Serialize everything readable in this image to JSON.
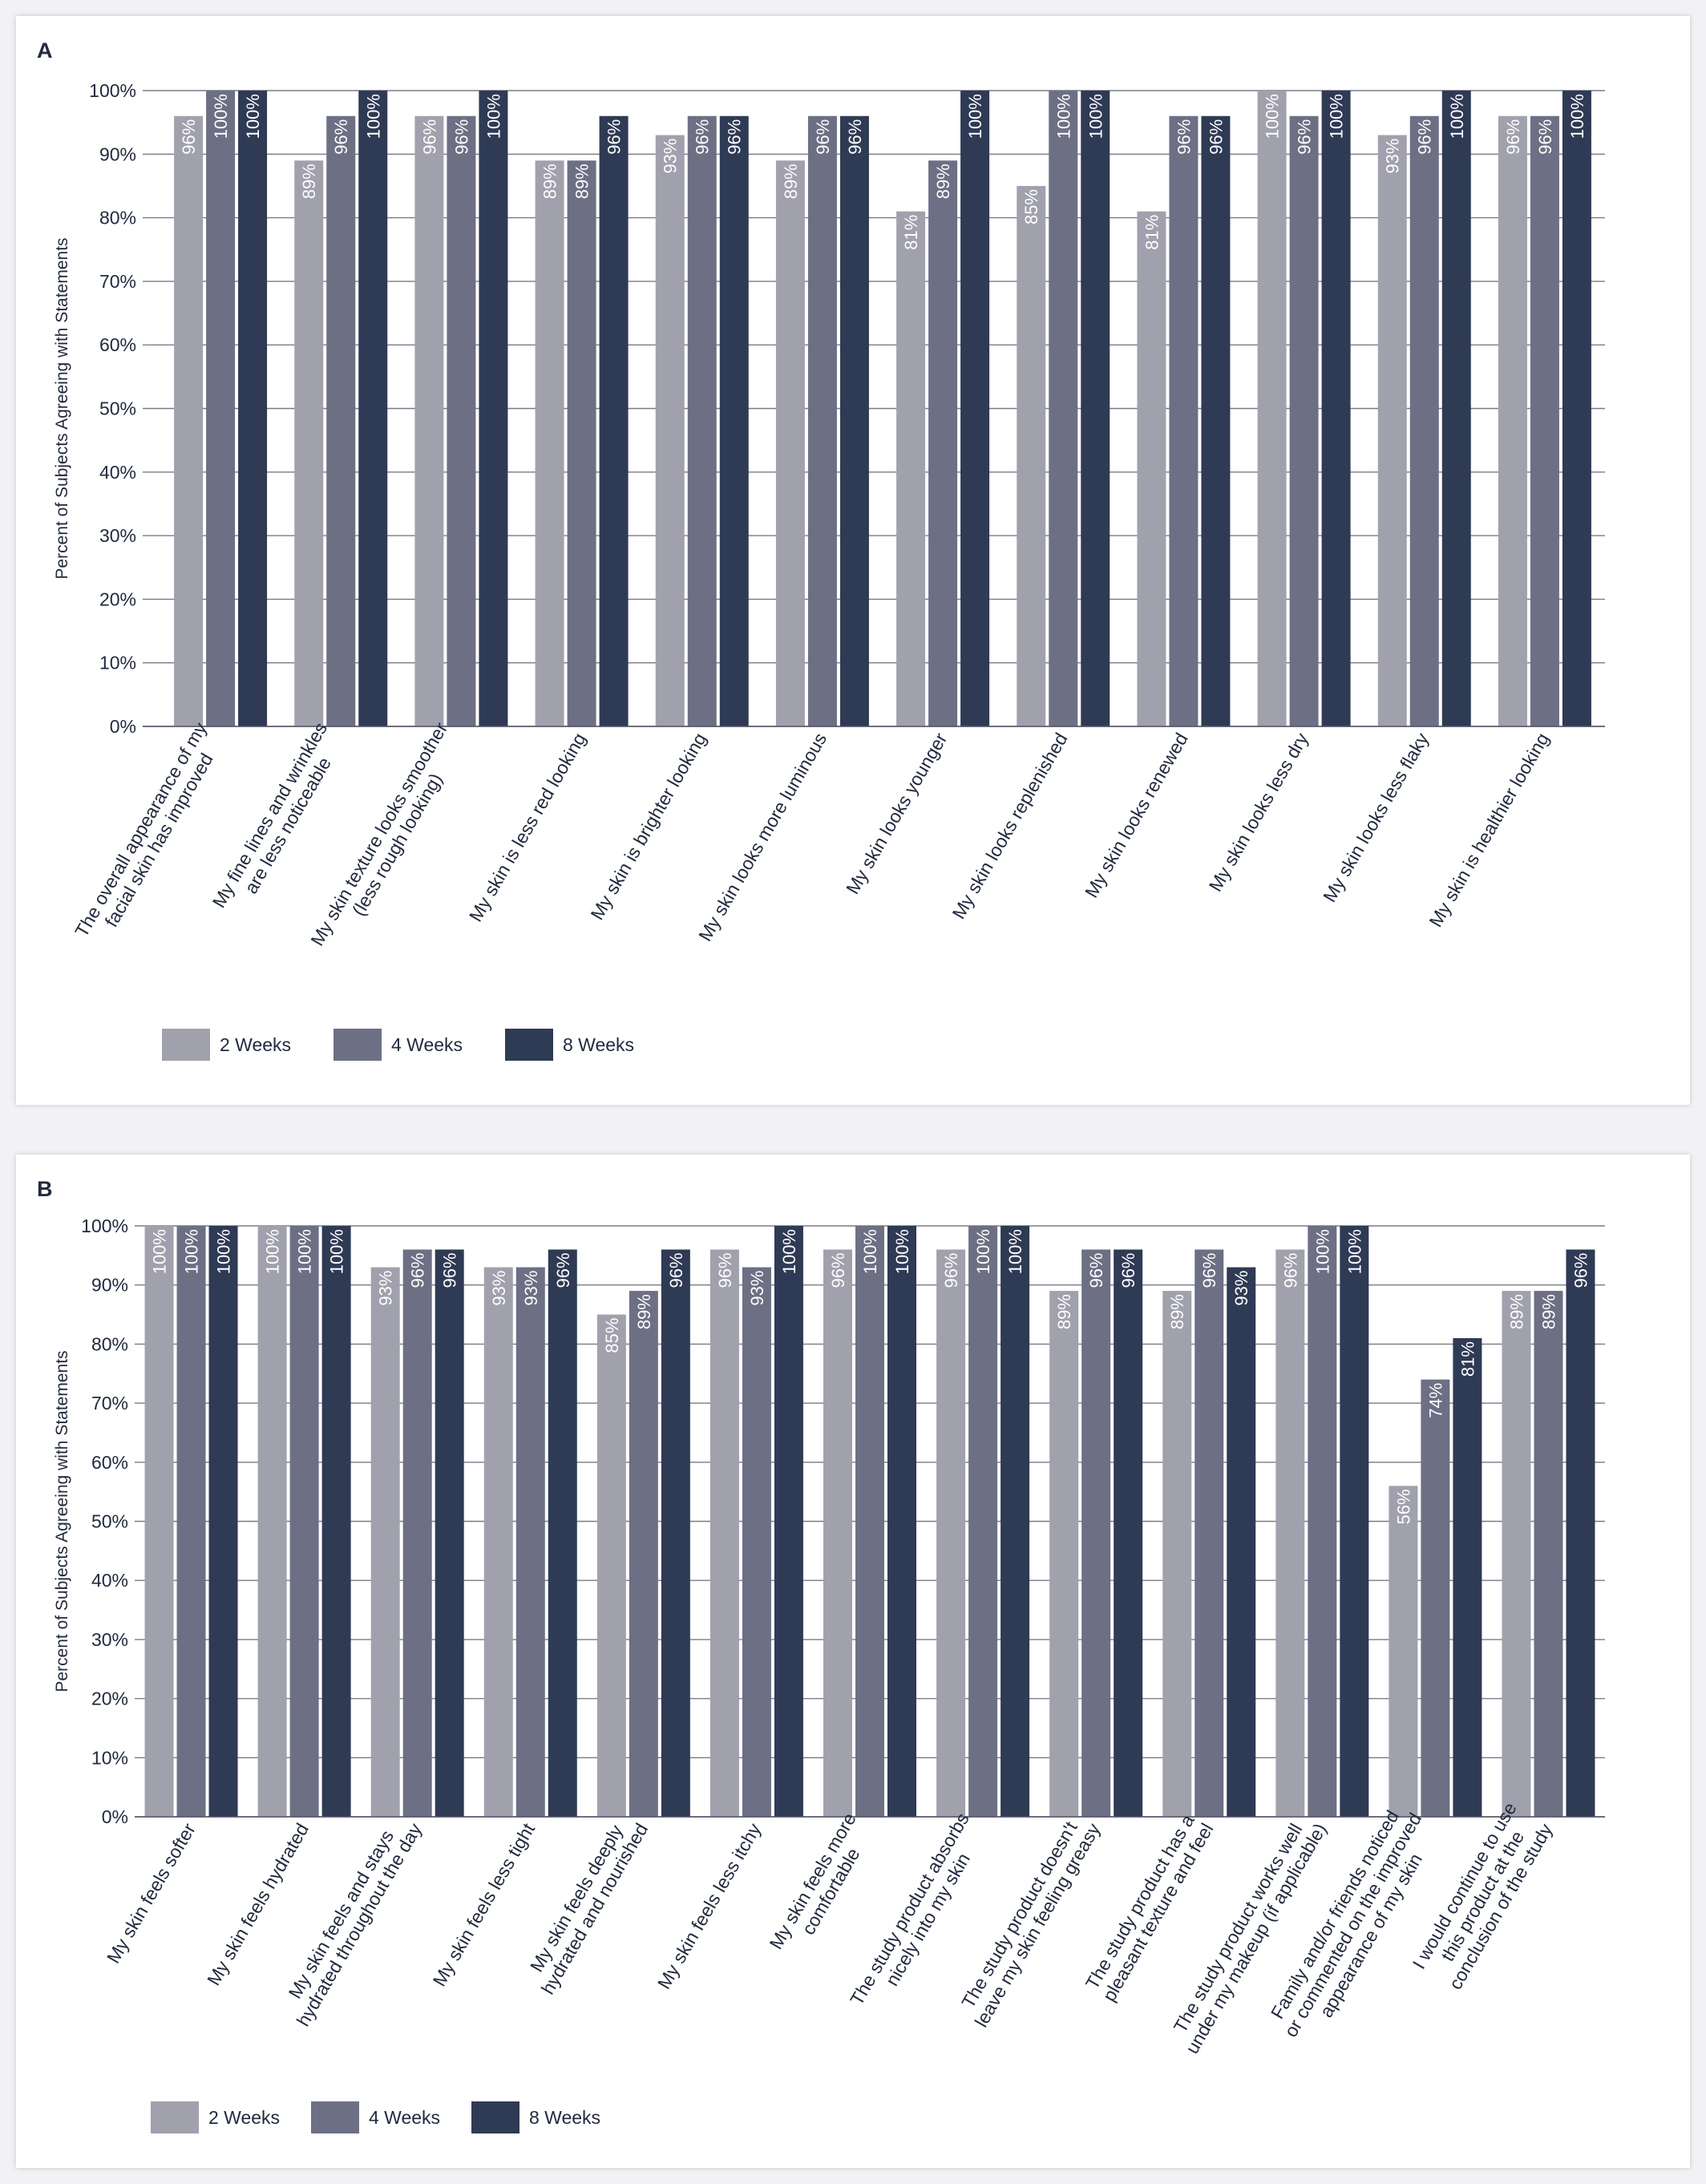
{
  "chart_data": [
    {
      "type": "bar",
      "panel_label": "A",
      "ylabel": "Percent of Subjects Agreeing with Statements",
      "ylim": [
        0,
        100
      ],
      "yticks": [
        "0%",
        "10%",
        "20%",
        "30%",
        "40%",
        "50%",
        "60%",
        "70%",
        "80%",
        "90%",
        "100%"
      ],
      "grid": true,
      "legend_position": "bottom-left",
      "categories": [
        "The overall appearance of my\nfacial skin has improved",
        "My fine lines and wrinkles\nare less noticeable",
        "My skin texture looks smoother\n(less rough looking)",
        "My skin is less red looking",
        "My skin is brighter looking",
        "My skin looks more luminous",
        "My skin looks younger",
        "My skin looks replenished",
        "My skin looks renewed",
        "My skin looks less dry",
        "My skin looks less flaky",
        "My skin is healthier looking"
      ],
      "series": [
        {
          "name": "2 Weeks",
          "color": "#a1a1ae",
          "values": [
            96,
            89,
            96,
            89,
            93,
            89,
            81,
            85,
            81,
            100,
            93,
            96
          ],
          "labels": [
            "96%",
            "89%",
            "96%",
            "89%",
            "93%",
            "89%",
            "81%",
            "85%",
            "81%",
            "100%",
            "93%",
            "96%"
          ]
        },
        {
          "name": "4 Weeks",
          "color": "#6d6f84",
          "values": [
            100,
            96,
            96,
            89,
            96,
            96,
            89,
            100,
            96,
            96,
            96,
            96
          ],
          "labels": [
            "100%",
            "96%",
            "96%",
            "89%",
            "96%",
            "96%",
            "89%",
            "100%",
            "96%",
            "96%",
            "96%",
            "96%"
          ]
        },
        {
          "name": "8 Weeks",
          "color": "#2f3a55",
          "values": [
            100,
            100,
            100,
            96,
            96,
            96,
            100,
            100,
            96,
            100,
            100,
            100
          ],
          "labels": [
            "100%",
            "100%",
            "100%",
            "96%",
            "96%",
            "96%",
            "100%",
            "100%",
            "96%",
            "100%",
            "100%",
            "100%"
          ]
        }
      ]
    },
    {
      "type": "bar",
      "panel_label": "B",
      "ylabel": "Percent of Subjects Agreeing with Statements",
      "ylim": [
        0,
        100
      ],
      "yticks": [
        "0%",
        "10%",
        "20%",
        "30%",
        "40%",
        "50%",
        "60%",
        "70%",
        "80%",
        "90%",
        "100%"
      ],
      "grid": true,
      "legend_position": "bottom-left",
      "categories": [
        "My skin feels softer",
        "My skin feels hydrated",
        "My skin feels and stays\nhydrated throughout the day",
        "My skin feels less tight",
        "My skin feels deeply\nhydrated and nourished",
        "My skin feels less itchy",
        "My skin feels more\ncomfortable",
        "The study product absorbs\nnicely into my skin",
        "The study product doesn't\nleave my skin feeling greasy",
        "The study product has a\npleasant texture and feel",
        "The study product works well\nunder my makeup (if applicable)",
        "Family and/or friends noticed\nor commented on the improved\nappearance of my skin",
        "I would continue to use\nthis product at the\nconclusion of the study"
      ],
      "series": [
        {
          "name": "2 Weeks",
          "color": "#a1a1ae",
          "values": [
            100,
            100,
            93,
            93,
            85,
            96,
            96,
            96,
            89,
            89,
            96,
            56,
            89
          ],
          "labels": [
            "100%",
            "100%",
            "93%",
            "93%",
            "85%",
            "96%",
            "96%",
            "96%",
            "89%",
            "89%",
            "96%",
            "56%",
            "89%"
          ]
        },
        {
          "name": "4 Weeks",
          "color": "#6d6f84",
          "values": [
            100,
            100,
            96,
            93,
            89,
            93,
            100,
            100,
            96,
            96,
            100,
            74,
            89
          ],
          "labels": [
            "100%",
            "100%",
            "96%",
            "93%",
            "89%",
            "93%",
            "100%",
            "100%",
            "96%",
            "96%",
            "100%",
            "74%",
            "89%"
          ]
        },
        {
          "name": "8 Weeks",
          "color": "#2f3a55",
          "values": [
            100,
            100,
            96,
            96,
            96,
            100,
            100,
            100,
            96,
            93,
            100,
            81,
            96
          ],
          "labels": [
            "100%",
            "100%",
            "96%",
            "96%",
            "96%",
            "100%",
            "100%",
            "100%",
            "96%",
            "93%",
            "100%",
            "81%",
            "96%"
          ]
        }
      ]
    }
  ]
}
